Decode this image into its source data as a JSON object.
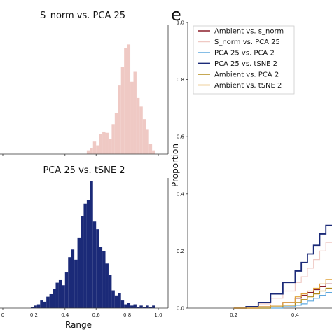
{
  "panel_letter": "e",
  "chart_data": [
    {
      "type": "bar",
      "title": "S_norm vs. PCA 25",
      "color": "#efc9c4",
      "xlim": [
        0.0,
        1.0
      ],
      "bin_width": 0.02,
      "x": [
        0.54,
        0.56,
        0.58,
        0.6,
        0.62,
        0.64,
        0.66,
        0.68,
        0.7,
        0.72,
        0.74,
        0.76,
        0.78,
        0.8,
        0.82,
        0.84,
        0.86,
        0.88,
        0.9,
        0.92,
        0.94,
        0.96
      ],
      "values": [
        0.03,
        0.05,
        0.1,
        0.07,
        0.16,
        0.18,
        0.17,
        0.12,
        0.24,
        0.33,
        0.55,
        0.7,
        0.85,
        0.88,
        0.58,
        0.66,
        0.45,
        0.38,
        0.28,
        0.2,
        0.08,
        0.03
      ],
      "xlabel": "",
      "ylabel": ""
    },
    {
      "type": "bar",
      "title": "PCA 25 vs. tSNE 2",
      "color": "#1b2a78",
      "xlim": [
        0.0,
        1.0
      ],
      "xticks": [
        "0",
        "0.2",
        "0.4",
        "0.6",
        "0.8",
        "1.0"
      ],
      "bin_width": 0.02,
      "x": [
        0.18,
        0.2,
        0.22,
        0.24,
        0.26,
        0.28,
        0.3,
        0.32,
        0.34,
        0.36,
        0.38,
        0.4,
        0.42,
        0.44,
        0.46,
        0.48,
        0.5,
        0.52,
        0.54,
        0.56,
        0.58,
        0.6,
        0.62,
        0.64,
        0.66,
        0.68,
        0.7,
        0.72,
        0.74,
        0.76,
        0.78,
        0.8,
        0.82,
        0.84,
        0.86,
        0.88,
        0.9,
        0.92,
        0.94,
        0.96
      ],
      "values": [
        0.01,
        0.02,
        0.03,
        0.06,
        0.05,
        0.09,
        0.11,
        0.15,
        0.2,
        0.22,
        0.18,
        0.28,
        0.4,
        0.46,
        0.38,
        0.55,
        0.72,
        0.82,
        0.85,
        1.0,
        0.68,
        0.62,
        0.48,
        0.45,
        0.35,
        0.26,
        0.14,
        0.1,
        0.12,
        0.06,
        0.03,
        0.04,
        0.02,
        0.03,
        0.01,
        0.02,
        0.01,
        0.02,
        0.01,
        0.02
      ],
      "xlabel": "Range",
      "ylabel": ""
    },
    {
      "type": "line",
      "title": "",
      "xlabel": "",
      "ylabel": "Proportion",
      "xlim": [
        0.05,
        0.52
      ],
      "ylim": [
        0.0,
        1.0
      ],
      "xticks": [
        "0.2",
        "0.4"
      ],
      "yticks": [
        "0.0",
        "0.2",
        "0.4",
        "0.6",
        "0.8",
        "1.0"
      ],
      "legend_position": "top-left",
      "x": [
        0.2,
        0.24,
        0.28,
        0.32,
        0.36,
        0.4,
        0.42,
        0.44,
        0.46,
        0.48,
        0.5
      ],
      "series": [
        {
          "name": "Ambient vs. s_norm",
          "color": "#8b1f2a",
          "values": [
            0.0,
            0.0,
            0.005,
            0.01,
            0.02,
            0.035,
            0.045,
            0.055,
            0.065,
            0.075,
            0.085
          ]
        },
        {
          "name": "S_norm vs. PCA 25",
          "color": "#efc9c4",
          "values": [
            0.0,
            0.005,
            0.015,
            0.035,
            0.06,
            0.09,
            0.11,
            0.14,
            0.17,
            0.2,
            0.23
          ]
        },
        {
          "name": "PCA 25 vs. PCA 2",
          "color": "#5fa8dd",
          "values": [
            0.0,
            0.0,
            0.0,
            0.0,
            0.005,
            0.01,
            0.015,
            0.025,
            0.035,
            0.045,
            0.055
          ]
        },
        {
          "name": "PCA 25 vs. tSNE 2",
          "color": "#1b2a78",
          "values": [
            0.0,
            0.005,
            0.02,
            0.05,
            0.09,
            0.13,
            0.16,
            0.19,
            0.22,
            0.26,
            0.29
          ]
        },
        {
          "name": "Ambient vs. PCA 2",
          "color": "#b38b1a",
          "values": [
            0.0,
            0.0,
            0.0,
            0.005,
            0.01,
            0.02,
            0.03,
            0.04,
            0.05,
            0.06,
            0.07
          ]
        },
        {
          "name": "Ambient vs. tSNE 2",
          "color": "#e0a23a",
          "values": [
            0.0,
            0.0,
            0.005,
            0.01,
            0.02,
            0.04,
            0.05,
            0.06,
            0.07,
            0.085,
            0.1
          ]
        }
      ]
    }
  ]
}
